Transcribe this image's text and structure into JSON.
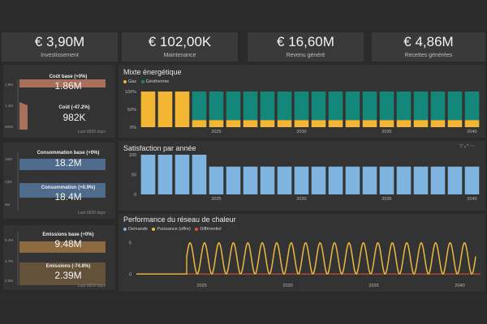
{
  "kpis": [
    {
      "value": "€ 3,90M",
      "label": "Investissement"
    },
    {
      "value": "€ 102,00K",
      "label": "Maintenance"
    },
    {
      "value": "€ 16,60M",
      "label": "Revenu généré"
    },
    {
      "value": "€ 4,86M",
      "label": "Recettes générées"
    }
  ],
  "side_cards": [
    {
      "base_label": "Coût base (+0%)",
      "base_value": "1.86M",
      "alt_label": "Coût (-47.2%)",
      "alt_value": "982K",
      "footer": "Last 6839 days",
      "color": "#a8705a",
      "base_fill": 1.0,
      "alt_fill": 0.53,
      "ticks": [
        "1.8M",
        "1.2M",
        "600K"
      ]
    },
    {
      "base_label": "Consommation base (+0%)",
      "base_value": "18.2M",
      "alt_label": "Consommation (+0.9%)",
      "alt_value": "18.4M",
      "footer": "Last 6839 days",
      "color": "#4f6b8c",
      "base_fill": 0.99,
      "alt_fill": 1.0,
      "ticks": [
        "18M",
        "12M",
        "6M"
      ]
    },
    {
      "base_label": "Emissions base (+0%)",
      "base_value": "9.48M",
      "alt_label": "Emissions (-74.8%)",
      "alt_value": "2.39M",
      "footer": "Last 6839 days",
      "color": "#8a6a3e",
      "base_fill": 1.0,
      "alt_fill": 0.25,
      "ticks": [
        "9.4M",
        "4.7M",
        "2.5M"
      ]
    }
  ],
  "charts": [
    {
      "title": "Mixte énergétique",
      "chart_data": {
        "type": "bar",
        "stacked": true,
        "series": [
          {
            "name": "Gaz",
            "color": "#f2b632",
            "values": [
              100,
              100,
              100,
              20,
              20,
              20,
              20,
              20,
              20,
              20,
              20,
              20,
              20,
              20,
              20,
              20,
              20,
              20,
              20,
              20
            ]
          },
          {
            "name": "Géothermie",
            "color": "#13877a",
            "values": [
              0,
              0,
              0,
              80,
              80,
              80,
              80,
              80,
              80,
              80,
              80,
              80,
              80,
              80,
              80,
              80,
              80,
              80,
              80,
              80
            ]
          }
        ],
        "yticks": [
          "0%",
          "50%",
          "100%"
        ],
        "xticks": [
          "2025",
          "2030",
          "2035",
          "2040"
        ],
        "ylim": [
          0,
          100
        ]
      }
    },
    {
      "title": "Satisfaction par année",
      "chart_data": {
        "type": "bar",
        "series": [
          {
            "name": "Satisfaction",
            "color": "#7fb3e0",
            "values": [
              100,
              100,
              100,
              100,
              70,
              70,
              70,
              70,
              70,
              70,
              70,
              70,
              70,
              70,
              70,
              70,
              70,
              70,
              70,
              70
            ]
          }
        ],
        "yticks": [
          "0",
          "50",
          "100"
        ],
        "xticks": [
          "2025",
          "2030",
          "2035",
          "2040"
        ],
        "ylim": [
          0,
          100
        ]
      }
    },
    {
      "title": "Performance du réseau de chaleur",
      "chart_data": {
        "type": "line",
        "series": [
          {
            "name": "Demande",
            "color": "#7fb3e0"
          },
          {
            "name": "Puissance (offre)",
            "color": "#f2b632"
          },
          {
            "name": "Différentiel",
            "color": "#e0583a"
          }
        ],
        "cycles": 20,
        "demand_peak": 5,
        "differential_value": 0,
        "yticks": [
          "0",
          "5"
        ],
        "xticks": [
          "2025",
          "2030",
          "2035",
          "2040"
        ],
        "ylim": [
          -1,
          6
        ]
      }
    }
  ]
}
